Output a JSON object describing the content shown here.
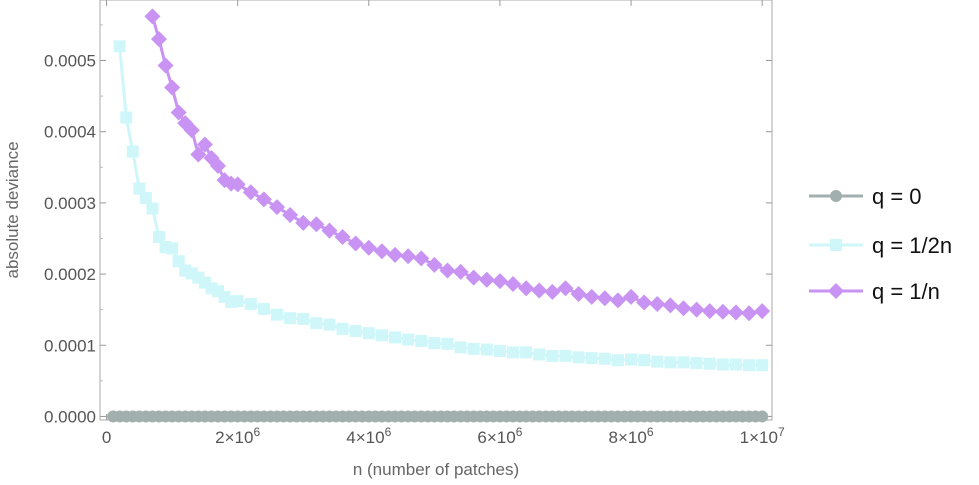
{
  "chart_data": {
    "type": "line",
    "xlabel": "n (number of patches)",
    "ylabel": "absolute deviance",
    "xlim": [
      -100000,
      10150000
    ],
    "ylim": [
      -5e-06,
      0.000585
    ],
    "xticks": [
      {
        "value": 0,
        "label": "0",
        "exp": ""
      },
      {
        "value": 2000000,
        "label": "2×10",
        "exp": "6"
      },
      {
        "value": 4000000,
        "label": "4×10",
        "exp": "6"
      },
      {
        "value": 6000000,
        "label": "6×10",
        "exp": "6"
      },
      {
        "value": 8000000,
        "label": "8×10",
        "exp": "6"
      },
      {
        "value": 10000000,
        "label": "1×10",
        "exp": "7"
      }
    ],
    "yticks": [
      {
        "value": 0.0,
        "label": "0.0000"
      },
      {
        "value": 0.0001,
        "label": "0.0001"
      },
      {
        "value": 0.0002,
        "label": "0.0002"
      },
      {
        "value": 0.0003,
        "label": "0.0003"
      },
      {
        "value": 0.0004,
        "label": "0.0004"
      },
      {
        "value": 0.0005,
        "label": "0.0005"
      }
    ],
    "legend_position": "right",
    "grid": false,
    "series": [
      {
        "name": "q = 0",
        "color": "#a1afae",
        "marker": "circle",
        "x_range": [
          100000,
          10000000
        ],
        "x_step": 100000,
        "values": "constant",
        "constant_value": 0.0
      },
      {
        "name": "q = 1/2n",
        "color": "#cff7fa",
        "marker": "square",
        "points": [
          [
            200000,
            0.00052
          ],
          [
            300000,
            0.00042
          ],
          [
            400000,
            0.000372
          ],
          [
            500000,
            0.00032
          ],
          [
            600000,
            0.000307
          ],
          [
            700000,
            0.000292
          ],
          [
            800000,
            0.000252
          ],
          [
            900000,
            0.000238
          ],
          [
            1000000,
            0.000236
          ],
          [
            1100000,
            0.000218
          ],
          [
            1200000,
            0.000205
          ],
          [
            1300000,
            0.000201
          ],
          [
            1400000,
            0.000195
          ],
          [
            1500000,
            0.000188
          ],
          [
            1600000,
            0.00018
          ],
          [
            1700000,
            0.000176
          ],
          [
            1800000,
            0.000168
          ],
          [
            1900000,
            0.000161
          ],
          [
            2000000,
            0.000162
          ],
          [
            2200000,
            0.000158
          ],
          [
            2400000,
            0.000151
          ],
          [
            2600000,
            0.000143
          ],
          [
            2800000,
            0.000138
          ],
          [
            3000000,
            0.000137
          ],
          [
            3200000,
            0.000131
          ],
          [
            3400000,
            0.000129
          ],
          [
            3600000,
            0.000123
          ],
          [
            3800000,
            0.00012
          ],
          [
            4000000,
            0.000117
          ],
          [
            4200000,
            0.000114
          ],
          [
            4400000,
            0.000111
          ],
          [
            4600000,
            0.000108
          ],
          [
            4800000,
            0.000106
          ],
          [
            5000000,
            0.000103
          ],
          [
            5200000,
            0.000102
          ],
          [
            5400000,
            9.7e-05
          ],
          [
            5600000,
            9.5e-05
          ],
          [
            5800000,
            9.4e-05
          ],
          [
            6000000,
            9.2e-05
          ],
          [
            6200000,
            9e-05
          ],
          [
            6400000,
            9e-05
          ],
          [
            6600000,
            8.7e-05
          ],
          [
            6800000,
            8.5e-05
          ],
          [
            7000000,
            8.5e-05
          ],
          [
            7200000,
            8.3e-05
          ],
          [
            7400000,
            8.2e-05
          ],
          [
            7600000,
            8.1e-05
          ],
          [
            7800000,
            7.9e-05
          ],
          [
            8000000,
            8e-05
          ],
          [
            8200000,
            7.9e-05
          ],
          [
            8400000,
            7.7e-05
          ],
          [
            8600000,
            7.6e-05
          ],
          [
            8800000,
            7.6e-05
          ],
          [
            9000000,
            7.5e-05
          ],
          [
            9200000,
            7.4e-05
          ],
          [
            9400000,
            7.3e-05
          ],
          [
            9600000,
            7.3e-05
          ],
          [
            9800000,
            7.2e-05
          ],
          [
            10000000,
            7.2e-05
          ]
        ]
      },
      {
        "name": "q = 1/n",
        "color": "#c893f2",
        "marker": "diamond",
        "points": [
          [
            700000,
            0.000562
          ],
          [
            800000,
            0.00053
          ],
          [
            900000,
            0.000493
          ],
          [
            1000000,
            0.000462
          ],
          [
            1100000,
            0.000427
          ],
          [
            1200000,
            0.000412
          ],
          [
            1300000,
            0.000402
          ],
          [
            1400000,
            0.000368
          ],
          [
            1500000,
            0.000382
          ],
          [
            1600000,
            0.000363
          ],
          [
            1700000,
            0.000352
          ],
          [
            1800000,
            0.000332
          ],
          [
            1900000,
            0.000327
          ],
          [
            2000000,
            0.000326
          ],
          [
            2200000,
            0.000315
          ],
          [
            2400000,
            0.000305
          ],
          [
            2600000,
            0.000294
          ],
          [
            2800000,
            0.000283
          ],
          [
            3000000,
            0.000272
          ],
          [
            3200000,
            0.00027
          ],
          [
            3400000,
            0.000261
          ],
          [
            3600000,
            0.000252
          ],
          [
            3800000,
            0.000243
          ],
          [
            4000000,
            0.000237
          ],
          [
            4200000,
            0.000232
          ],
          [
            4400000,
            0.000227
          ],
          [
            4600000,
            0.000225
          ],
          [
            4800000,
            0.000222
          ],
          [
            5000000,
            0.000213
          ],
          [
            5200000,
            0.000205
          ],
          [
            5400000,
            0.000203
          ],
          [
            5600000,
            0.000195
          ],
          [
            5800000,
            0.000192
          ],
          [
            6000000,
            0.00019
          ],
          [
            6200000,
            0.000186
          ],
          [
            6400000,
            0.00018
          ],
          [
            6600000,
            0.000177
          ],
          [
            6800000,
            0.000175
          ],
          [
            7000000,
            0.00018
          ],
          [
            7200000,
            0.000172
          ],
          [
            7400000,
            0.000168
          ],
          [
            7600000,
            0.000166
          ],
          [
            7800000,
            0.000163
          ],
          [
            8000000,
            0.000168
          ],
          [
            8200000,
            0.00016
          ],
          [
            8400000,
            0.000158
          ],
          [
            8600000,
            0.000156
          ],
          [
            8800000,
            0.000152
          ],
          [
            9000000,
            0.00015
          ],
          [
            9200000,
            0.000148
          ],
          [
            9400000,
            0.000147
          ],
          [
            9600000,
            0.000146
          ],
          [
            9800000,
            0.000145
          ],
          [
            10000000,
            0.000148
          ]
        ]
      }
    ]
  }
}
